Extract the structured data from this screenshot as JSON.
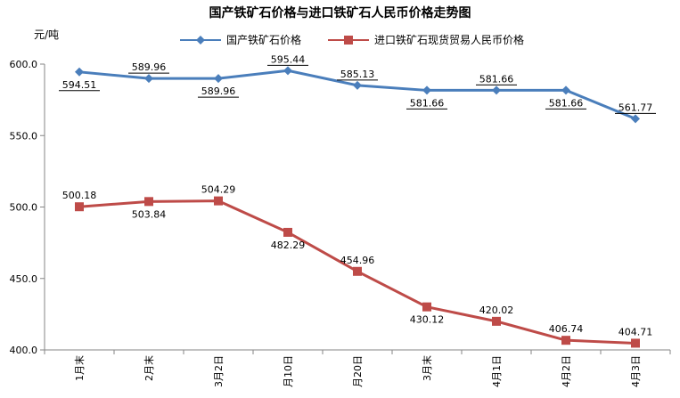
{
  "chart_data": {
    "type": "line",
    "title": "国产铁矿石价格与进口铁矿石人民币价格走势图",
    "ylabel": "元/吨",
    "xlabel": "",
    "categories": [
      "1月末",
      "2月末",
      "3月2日",
      "月10日",
      "月20日",
      "3月末",
      "4月1日",
      "4月2日",
      "4月3日"
    ],
    "ylim": [
      400,
      600
    ],
    "yticks": [
      "400.0",
      "450.0",
      "500.0",
      "550.0",
      "600.0"
    ],
    "grid": false,
    "legend_position": "top",
    "series": [
      {
        "name": "国产铁矿石价格",
        "color": "#4a7ebb",
        "marker": "diamond",
        "values": [
          594.51,
          589.96,
          589.96,
          595.44,
          585.13,
          581.66,
          581.66,
          581.66,
          561.77
        ],
        "labels": [
          "594.51",
          "589.96",
          "589.96",
          "595.44",
          "585.13",
          "581.66",
          "581.66",
          "581.66",
          "561.77"
        ],
        "label_pos": [
          "below",
          "above",
          "below",
          "above",
          "above",
          "below",
          "above",
          "below",
          "above"
        ]
      },
      {
        "name": "进口铁矿石现货贸易人民币价格",
        "color": "#be4b48",
        "marker": "square",
        "values": [
          500.18,
          503.84,
          504.29,
          482.29,
          454.96,
          430.12,
          420.02,
          406.74,
          404.71
        ],
        "labels": [
          "500.18",
          "503.84",
          "504.29",
          "482.29",
          "454.96",
          "430.12",
          "420.02",
          "406.74",
          "404.71"
        ],
        "label_pos": [
          "above",
          "below",
          "above",
          "below",
          "above",
          "below",
          "above",
          "above",
          "above"
        ]
      }
    ]
  }
}
